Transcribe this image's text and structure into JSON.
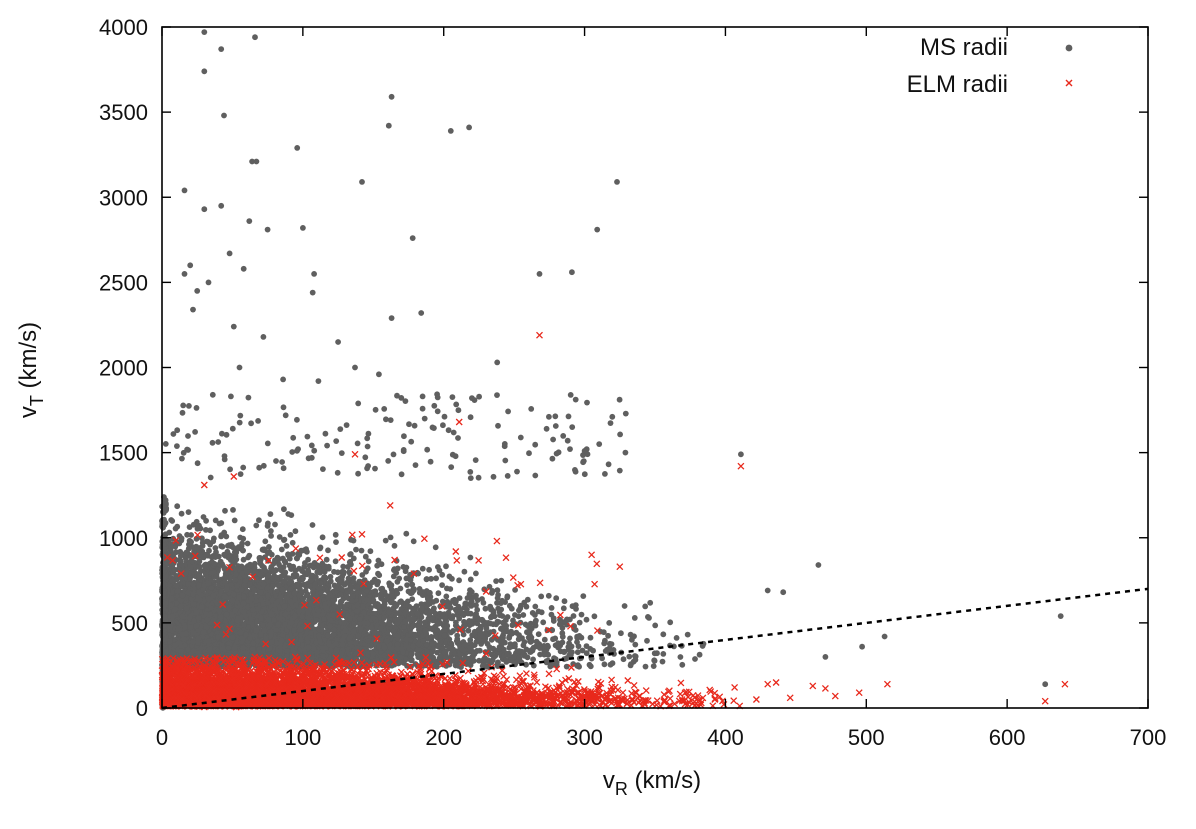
{
  "chart_data": {
    "type": "scatter",
    "title": "",
    "xlabel": {
      "main": "v",
      "sub": "R",
      "unit": " (km/s)"
    },
    "ylabel": {
      "main": "v",
      "sub": "T",
      "unit": " (km/s)"
    },
    "xlim": [
      0,
      700
    ],
    "ylim": [
      0,
      4000
    ],
    "xticks": [
      0,
      100,
      200,
      300,
      400,
      500,
      600,
      700
    ],
    "yticks": [
      0,
      500,
      1000,
      1500,
      2000,
      2500,
      3000,
      3500,
      4000
    ],
    "grid": false,
    "legend_position": "top-right",
    "reference_line": {
      "style": "dashed",
      "color": "#000000",
      "slope": 1,
      "x": [
        0,
        700
      ],
      "y": [
        0,
        700
      ]
    },
    "series": [
      {
        "name": "MS radii",
        "marker": "dot",
        "color": "#5f5f5f",
        "bulk": {
          "x_range": [
            0,
            400
          ],
          "y_range": [
            0,
            1300
          ],
          "density": "high",
          "y_upper_decreases_with_x": true
        },
        "points": [
          [
            30,
            3970
          ],
          [
            42,
            3870
          ],
          [
            66,
            3940
          ],
          [
            30,
            3740
          ],
          [
            44,
            3480
          ],
          [
            163,
            3590
          ],
          [
            161,
            3420
          ],
          [
            205,
            3390
          ],
          [
            218,
            3410
          ],
          [
            96,
            3290
          ],
          [
            64,
            3210
          ],
          [
            67,
            3210
          ],
          [
            16,
            3040
          ],
          [
            142,
            3090
          ],
          [
            323,
            3090
          ],
          [
            30,
            2930
          ],
          [
            42,
            2950
          ],
          [
            62,
            2860
          ],
          [
            100,
            2820
          ],
          [
            75,
            2810
          ],
          [
            309,
            2810
          ],
          [
            178,
            2760
          ],
          [
            20,
            2600
          ],
          [
            16,
            2550
          ],
          [
            33,
            2500
          ],
          [
            48,
            2670
          ],
          [
            58,
            2580
          ],
          [
            108,
            2550
          ],
          [
            268,
            2550
          ],
          [
            291,
            2560
          ],
          [
            25,
            2450
          ],
          [
            107,
            2440
          ],
          [
            22,
            2340
          ],
          [
            51,
            2240
          ],
          [
            163,
            2290
          ],
          [
            184,
            2320
          ],
          [
            72,
            2180
          ],
          [
            125,
            2150
          ],
          [
            238,
            2030
          ],
          [
            55,
            2000
          ],
          [
            137,
            2000
          ],
          [
            154,
            1960
          ],
          [
            86,
            1930
          ],
          [
            111,
            1920
          ],
          [
            185,
            1830
          ],
          [
            220,
            1820
          ],
          [
            288,
            1570
          ],
          [
            300,
            1510
          ],
          [
            329,
            1500
          ],
          [
            411,
            1490
          ],
          [
            430,
            690
          ],
          [
            466,
            840
          ],
          [
            471,
            300
          ],
          [
            513,
            420
          ],
          [
            627,
            140
          ],
          [
            638,
            540
          ],
          [
            497,
            360
          ],
          [
            441,
            680
          ]
        ]
      },
      {
        "name": "ELM radii",
        "marker": "x",
        "color": "#e8291c",
        "bulk": {
          "x_range": [
            0,
            420
          ],
          "y_range": [
            0,
            300
          ],
          "density": "high"
        },
        "points": [
          [
            268,
            2190
          ],
          [
            211,
            1680
          ],
          [
            137,
            1490
          ],
          [
            51,
            1360
          ],
          [
            411,
            1420
          ],
          [
            30,
            1310
          ],
          [
            162,
            1190
          ],
          [
            142,
            1020
          ],
          [
            305,
            900
          ],
          [
            325,
            830
          ],
          [
            290,
            480
          ],
          [
            212,
            460
          ],
          [
            430,
            140
          ],
          [
            436,
            150
          ],
          [
            462,
            130
          ],
          [
            471,
            115
          ],
          [
            478,
            70
          ],
          [
            495,
            90
          ],
          [
            515,
            140
          ],
          [
            627,
            40
          ],
          [
            641,
            140
          ],
          [
            422,
            50
          ],
          [
            446,
            60
          ]
        ]
      }
    ]
  }
}
